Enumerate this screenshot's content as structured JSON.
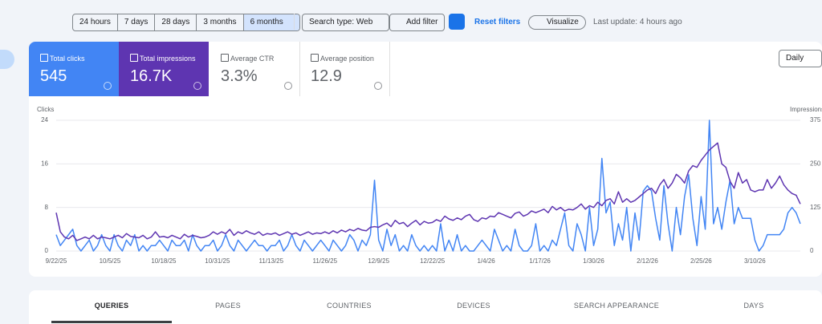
{
  "toolbar": {
    "date_ranges": [
      "24 hours",
      "7 days",
      "28 days",
      "3 months",
      "6 months"
    ],
    "search_type": "Search type: Web",
    "add_filter": "Add filter",
    "reset_filters": "Reset filters",
    "visualize": "Visualize",
    "last_update": "Last update: 4 hours ago"
  },
  "metrics": [
    {
      "label": "Total clicks",
      "value": "545"
    },
    {
      "label": "Total impressions",
      "value": "16.7K"
    },
    {
      "label": "Average CTR",
      "value": "3.3%"
    },
    {
      "label": "Average position",
      "value": "12.9"
    }
  ],
  "granularity": "Daily",
  "chart_data": {
    "type": "line",
    "y_label": "Clicks",
    "y2_label": "Impressions",
    "categories": [
      "9/22/25",
      null,
      null,
      null,
      null,
      null,
      null,
      null,
      null,
      null,
      null,
      null,
      null,
      "10/5/25",
      null,
      null,
      null,
      null,
      null,
      null,
      null,
      null,
      null,
      null,
      null,
      null,
      "10/18/25",
      null,
      null,
      null,
      null,
      null,
      null,
      null,
      null,
      null,
      null,
      null,
      null,
      "10/31/25",
      null,
      null,
      null,
      null,
      null,
      null,
      null,
      null,
      null,
      null,
      null,
      null,
      "11/13/25",
      null,
      null,
      null,
      null,
      null,
      null,
      null,
      null,
      null,
      null,
      null,
      null,
      "11/26/25",
      null,
      null,
      null,
      null,
      null,
      null,
      null,
      null,
      null,
      null,
      null,
      null,
      "12/9/25",
      null,
      null,
      null,
      null,
      null,
      null,
      null,
      null,
      null,
      null,
      null,
      null,
      "12/22/25",
      null,
      null,
      null,
      null,
      null,
      null,
      null,
      null,
      null,
      null,
      null,
      null,
      "1/4/26",
      null,
      null,
      null,
      null,
      null,
      null,
      null,
      null,
      null,
      null,
      null,
      null,
      "1/17/26",
      null,
      null,
      null,
      null,
      null,
      null,
      null,
      null,
      null,
      null,
      null,
      null,
      "1/30/26",
      null,
      null,
      null,
      null,
      null,
      null,
      null,
      null,
      null,
      null,
      null,
      null,
      "2/12/26",
      null,
      null,
      null,
      null,
      null,
      null,
      null,
      null,
      null,
      null,
      null,
      null,
      "2/25/26",
      null,
      null,
      null,
      null,
      null,
      null,
      null,
      null,
      null,
      null,
      null,
      null,
      "3/10/26",
      null,
      null,
      null,
      null,
      null,
      null,
      null,
      null,
      null,
      null,
      null
    ],
    "series": [
      {
        "color": "#4285f4",
        "values": [
          3,
          1,
          2,
          3,
          4,
          1,
          0,
          1,
          2,
          0,
          1,
          3,
          1,
          0,
          3,
          1,
          0,
          2,
          1,
          3,
          0,
          1,
          0,
          1,
          1,
          2,
          1,
          0,
          2,
          1,
          1,
          2,
          0,
          3,
          1,
          0,
          1,
          1,
          2,
          0,
          1,
          3,
          1,
          0,
          2,
          1,
          0,
          1,
          2,
          1,
          1,
          0,
          1,
          1,
          2,
          0,
          1,
          3,
          1,
          0,
          2,
          1,
          0,
          1,
          2,
          1,
          0,
          2,
          1,
          0,
          1,
          3,
          2,
          0,
          2,
          1,
          3,
          13,
          2,
          0,
          4,
          1,
          3,
          0,
          1,
          0,
          3,
          1,
          0,
          1,
          0,
          1,
          0,
          5,
          0,
          2,
          0,
          3,
          0,
          1,
          0,
          0,
          1,
          2,
          1,
          0,
          4,
          2,
          0,
          1,
          0,
          4,
          1,
          0,
          0,
          1,
          5,
          0,
          1,
          0,
          2,
          1,
          4,
          7,
          1,
          0,
          5,
          3,
          0,
          8,
          1,
          4,
          17,
          7,
          9,
          1,
          5,
          2,
          8,
          0,
          7,
          2,
          11,
          12,
          11,
          6,
          2,
          12,
          5,
          0,
          8,
          3,
          10,
          14,
          6,
          1,
          10,
          4,
          24,
          5,
          8,
          4,
          9,
          13,
          5,
          8,
          6,
          6,
          6,
          2,
          0,
          1,
          3,
          3,
          3,
          3,
          4,
          7,
          8,
          7,
          5
        ]
      },
      {
        "color": "#5e35b1",
        "axis": "y2",
        "values": [
          110,
          55,
          40,
          35,
          45,
          30,
          35,
          40,
          35,
          45,
          35,
          40,
          38,
          35,
          40,
          45,
          38,
          50,
          42,
          40,
          38,
          45,
          35,
          40,
          55,
          40,
          42,
          38,
          45,
          40,
          35,
          48,
          40,
          45,
          42,
          38,
          40,
          45,
          55,
          48,
          55,
          50,
          62,
          45,
          55,
          50,
          58,
          52,
          48,
          55,
          45,
          50,
          48,
          52,
          45,
          50,
          55,
          48,
          52,
          45,
          50,
          55,
          48,
          52,
          50,
          55,
          50,
          58,
          52,
          60,
          55,
          62,
          58,
          65,
          60,
          58,
          68,
          70,
          68,
          75,
          80,
          70,
          88,
          78,
          82,
          70,
          80,
          88,
          75,
          85,
          80,
          82,
          90,
          85,
          100,
          92,
          88,
          95,
          90,
          100,
          105,
          90,
          85,
          95,
          92,
          100,
          98,
          110,
          105,
          100,
          95,
          108,
          112,
          100,
          105,
          115,
          110,
          115,
          120,
          110,
          128,
          118,
          125,
          115,
          120,
          118,
          125,
          135,
          120,
          130,
          125,
          140,
          130,
          145,
          150,
          135,
          170,
          140,
          150,
          140,
          145,
          155,
          165,
          175,
          180,
          165,
          190,
          205,
          180,
          195,
          220,
          210,
          195,
          230,
          245,
          240,
          260,
          275,
          290,
          300,
          310,
          250,
          240,
          200,
          180,
          225,
          195,
          205,
          175,
          170,
          175,
          175,
          205,
          180,
          195,
          215,
          190,
          175,
          165,
          160,
          135
        ]
      }
    ],
    "ylim": [
      0,
      24
    ],
    "yticks": [
      0,
      8,
      16,
      24
    ],
    "y2lim": [
      0,
      375
    ],
    "y2ticks": [
      0,
      125,
      250,
      375
    ],
    "grid": true
  },
  "tabs": [
    "QUERIES",
    "PAGES",
    "COUNTRIES",
    "DEVICES",
    "SEARCH APPEARANCE",
    "DAYS"
  ]
}
